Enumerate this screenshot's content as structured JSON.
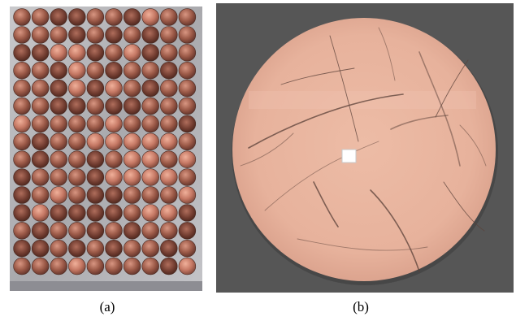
{
  "figure": {
    "captions": {
      "a": "(a)",
      "b": "(b)"
    },
    "panel_a": {
      "rows": 15,
      "cols": 10,
      "plate_color": "#b9b9bb",
      "frame_color": "#9a9aa0",
      "disc_base_color": "#a06050",
      "disc_highlight_color": "#d8907a"
    },
    "panel_b": {
      "background_color": "#565656",
      "disc_color": "#e9b59f",
      "scratch_color": "#5a4038",
      "marker_color": "#ffffff"
    }
  }
}
